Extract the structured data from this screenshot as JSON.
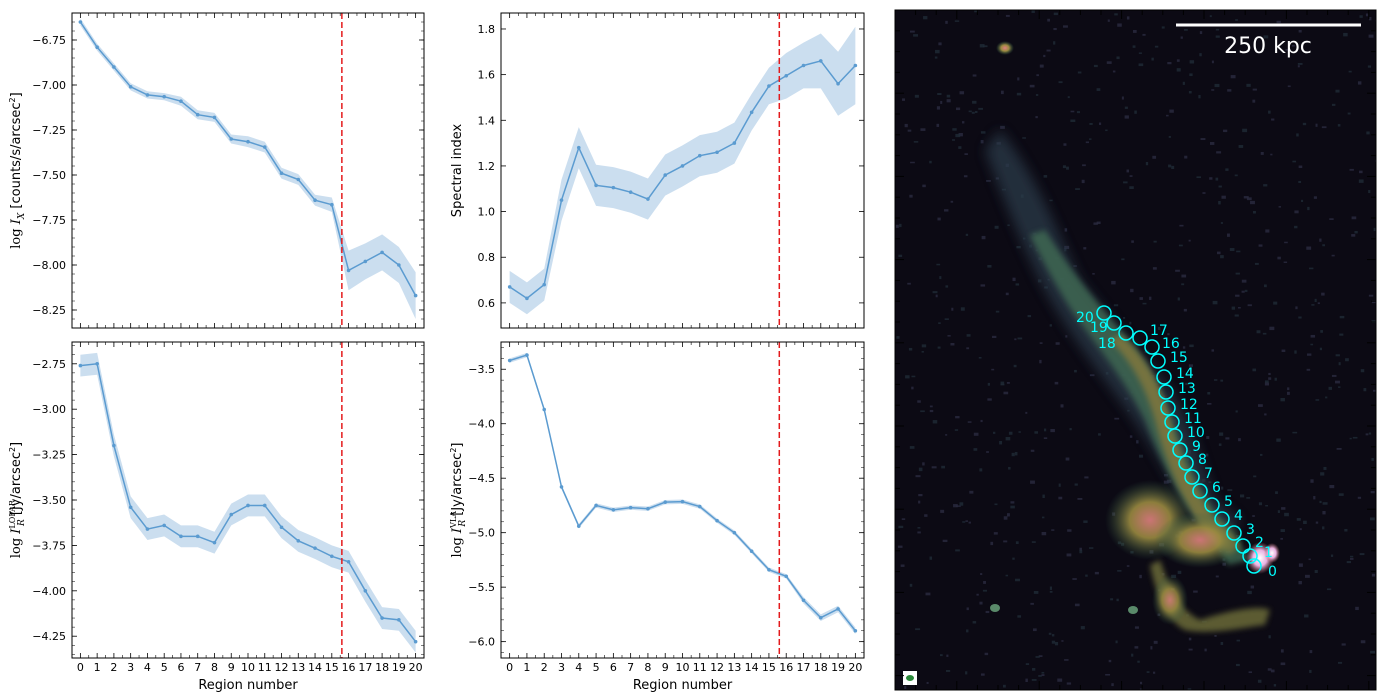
{
  "figure": {
    "colors": {
      "line": "#5b9bd0",
      "band": "#b9d3ea",
      "cutoff": "#e41a1c",
      "region_circle": "#00ffff"
    }
  },
  "chart_data": [
    {
      "id": "xray",
      "type": "line",
      "xlabel": "",
      "ylabel": "log I_X [counts/s/arcsec²]",
      "ylabel_parts": {
        "pre": "log ",
        "var": "I",
        "sub": "X",
        "post": " [counts/s/arcsec",
        "sup": "2",
        "end": "]"
      },
      "x": [
        0,
        1,
        2,
        3,
        4,
        5,
        6,
        7,
        8,
        9,
        10,
        11,
        12,
        13,
        14,
        15,
        16,
        17,
        18,
        19,
        20
      ],
      "y": [
        -6.65,
        -6.79,
        -6.9,
        -7.01,
        -7.055,
        -7.065,
        -7.09,
        -7.165,
        -7.18,
        -7.3,
        -7.315,
        -7.345,
        -7.49,
        -7.525,
        -7.64,
        -7.665,
        -8.03,
        -7.98,
        -7.93,
        -8.0,
        -8.17
      ],
      "y_err": [
        0.02,
        0.02,
        0.02,
        0.02,
        0.02,
        0.02,
        0.025,
        0.025,
        0.025,
        0.025,
        0.03,
        0.03,
        0.03,
        0.03,
        0.03,
        0.04,
        0.11,
        0.1,
        0.1,
        0.1,
        0.13
      ],
      "ylim": [
        -8.35,
        -6.6
      ],
      "xlim": [
        -0.5,
        20.5
      ],
      "yticks": [
        -6.75,
        -7.0,
        -7.25,
        -7.5,
        -7.75,
        -8.0,
        -8.25
      ],
      "ytick_labels": [
        "−6.75",
        "−7.00",
        "−7.25",
        "−7.50",
        "−7.75",
        "−8.00",
        "−8.25"
      ],
      "xticks": [
        0,
        1,
        2,
        3,
        4,
        5,
        6,
        7,
        8,
        9,
        10,
        11,
        12,
        13,
        14,
        15,
        16,
        17,
        18,
        19,
        20
      ],
      "show_xtick_labels": false,
      "cutoff_x": 15.6
    },
    {
      "id": "spectral-index",
      "type": "line",
      "xlabel": "",
      "ylabel": "Spectral index",
      "x": [
        0,
        1,
        2,
        3,
        4,
        5,
        6,
        7,
        8,
        9,
        10,
        11,
        12,
        13,
        14,
        15,
        16,
        17,
        18,
        19,
        20
      ],
      "y": [
        0.67,
        0.62,
        0.68,
        1.05,
        1.28,
        1.115,
        1.105,
        1.085,
        1.055,
        1.16,
        1.2,
        1.245,
        1.26,
        1.3,
        1.435,
        1.55,
        1.595,
        1.64,
        1.66,
        1.56,
        1.64
      ],
      "y_err": [
        0.07,
        0.07,
        0.07,
        0.09,
        0.09,
        0.09,
        0.09,
        0.09,
        0.09,
        0.09,
        0.09,
        0.09,
        0.09,
        0.09,
        0.08,
        0.08,
        0.1,
        0.1,
        0.12,
        0.14,
        0.17
      ],
      "ylim": [
        0.49,
        1.87
      ],
      "xlim": [
        -0.5,
        20.5
      ],
      "yticks": [
        0.6,
        0.8,
        1.0,
        1.2,
        1.4,
        1.6,
        1.8
      ],
      "ytick_labels": [
        "0.6",
        "0.8",
        "1.0",
        "1.2",
        "1.4",
        "1.6",
        "1.8"
      ],
      "xticks": [
        0,
        1,
        2,
        3,
        4,
        5,
        6,
        7,
        8,
        9,
        10,
        11,
        12,
        13,
        14,
        15,
        16,
        17,
        18,
        19,
        20
      ],
      "show_xtick_labels": false,
      "cutoff_x": 15.6
    },
    {
      "id": "lofar",
      "type": "line",
      "xlabel": "Region number",
      "ylabel": "log I_R^LOFAR [Jy/arcsec²]",
      "ylabel_parts": {
        "pre": "log ",
        "var": "I",
        "sub": "R",
        "supv": "LOFAR",
        "post": " [Jy/arcsec",
        "sup": "2",
        "end": "]"
      },
      "x": [
        0,
        1,
        2,
        3,
        4,
        5,
        6,
        7,
        8,
        9,
        10,
        11,
        12,
        13,
        14,
        15,
        16,
        17,
        18,
        19,
        20
      ],
      "y": [
        -2.76,
        -2.75,
        -3.2,
        -3.54,
        -3.66,
        -3.64,
        -3.7,
        -3.7,
        -3.735,
        -3.58,
        -3.53,
        -3.53,
        -3.65,
        -3.725,
        -3.765,
        -3.81,
        -3.84,
        -4.0,
        -4.15,
        -4.16,
        -4.28
      ],
      "y_err": [
        0.06,
        0.06,
        0.06,
        0.06,
        0.06,
        0.06,
        0.06,
        0.06,
        0.06,
        0.06,
        0.06,
        0.06,
        0.06,
        0.06,
        0.06,
        0.06,
        0.06,
        0.06,
        0.06,
        0.06,
        0.06
      ],
      "ylim": [
        -4.37,
        -2.63
      ],
      "xlim": [
        -0.5,
        20.5
      ],
      "yticks": [
        -2.75,
        -3.0,
        -3.25,
        -3.5,
        -3.75,
        -4.0,
        -4.25
      ],
      "ytick_labels": [
        "−2.75",
        "−3.00",
        "−3.25",
        "−3.50",
        "−3.75",
        "−4.00",
        "−4.25"
      ],
      "xticks": [
        0,
        1,
        2,
        3,
        4,
        5,
        6,
        7,
        8,
        9,
        10,
        11,
        12,
        13,
        14,
        15,
        16,
        17,
        18,
        19,
        20
      ],
      "xtick_labels": [
        "0",
        "1",
        "2",
        "3",
        "4",
        "5",
        "6",
        "7",
        "8",
        "9",
        "10",
        "11",
        "12",
        "13",
        "14",
        "15",
        "16",
        "17",
        "18",
        "19",
        "20"
      ],
      "show_xtick_labels": true,
      "cutoff_x": 15.6
    },
    {
      "id": "vla",
      "type": "line",
      "xlabel": "Region number",
      "ylabel": "log I_R^VLA [Jy/arcsec²]",
      "ylabel_parts": {
        "pre": "log ",
        "var": "I",
        "sub": "R",
        "supv": "VLA",
        "post": " [Jy/arcsec",
        "sup": "2",
        "end": "]"
      },
      "x": [
        0,
        1,
        2,
        3,
        4,
        5,
        6,
        7,
        8,
        9,
        10,
        11,
        12,
        13,
        14,
        15,
        16,
        17,
        18,
        19,
        20
      ],
      "y": [
        -3.42,
        -3.37,
        -3.87,
        -4.58,
        -4.94,
        -4.75,
        -4.79,
        -4.77,
        -4.78,
        -4.72,
        -4.715,
        -4.76,
        -4.89,
        -5.0,
        -5.17,
        -5.34,
        -5.4,
        -5.62,
        -5.78,
        -5.7,
        -5.9
      ],
      "y_err": [
        0.02,
        0.02,
        0.02,
        0.02,
        0.02,
        0.02,
        0.02,
        0.02,
        0.02,
        0.02,
        0.02,
        0.02,
        0.02,
        0.02,
        0.02,
        0.02,
        0.02,
        0.03,
        0.03,
        0.03,
        0.03
      ],
      "ylim": [
        -6.15,
        -3.25
      ],
      "xlim": [
        -0.5,
        20.5
      ],
      "yticks": [
        -3.5,
        -4.0,
        -4.5,
        -5.0,
        -5.5,
        -6.0
      ],
      "ytick_labels": [
        "−3.5",
        "−4.0",
        "−4.5",
        "−5.0",
        "−5.5",
        "−6.0"
      ],
      "xticks": [
        0,
        1,
        2,
        3,
        4,
        5,
        6,
        7,
        8,
        9,
        10,
        11,
        12,
        13,
        14,
        15,
        16,
        17,
        18,
        19,
        20
      ],
      "xtick_labels": [
        "0",
        "1",
        "2",
        "3",
        "4",
        "5",
        "6",
        "7",
        "8",
        "9",
        "10",
        "11",
        "12",
        "13",
        "14",
        "15",
        "16",
        "17",
        "18",
        "19",
        "20"
      ],
      "show_xtick_labels": true,
      "cutoff_x": 15.6
    }
  ],
  "image_panel": {
    "scalebar_label": "250 kpc",
    "region_labels": [
      "0",
      "1",
      "2",
      "3",
      "4",
      "5",
      "6",
      "7",
      "8",
      "9",
      "10",
      "11",
      "12",
      "13",
      "14",
      "15",
      "16",
      "17",
      "18",
      "19",
      "20"
    ]
  }
}
